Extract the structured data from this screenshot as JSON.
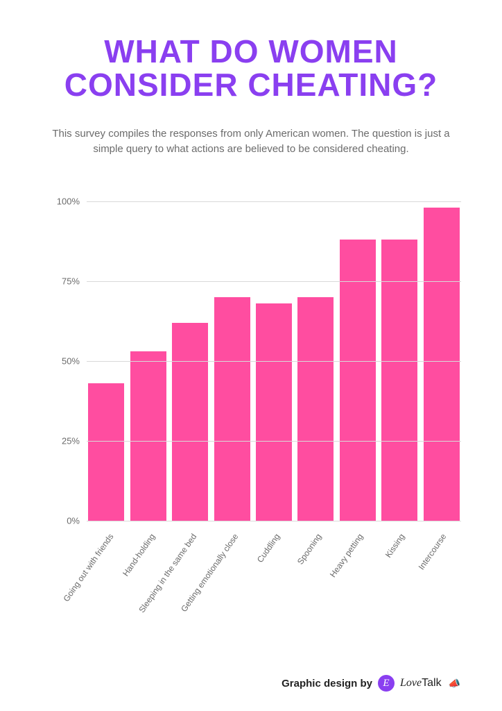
{
  "title": {
    "text": "WHAT DO WOMEN CONSIDER CHEATING?",
    "color": "#8a3ff0",
    "fontsize": 46
  },
  "subtitle": {
    "text": "This survey compiles the responses from only American women. The question is just a simple query to what actions are believed to be considered cheating.",
    "color": "#6b6b6b",
    "fontsize": 15
  },
  "chart": {
    "type": "bar",
    "categories": [
      "Going out with friends",
      "Hand-holding",
      "Sleeping in the same bed",
      "Getting emotionally close",
      "Cuddling",
      "Spooning",
      "Heavy petting",
      "Kissing",
      "Intercourse"
    ],
    "values": [
      43,
      53,
      62,
      70,
      68,
      70,
      88,
      88,
      98
    ],
    "bar_color": "#ff4da0",
    "ylim": [
      0,
      100
    ],
    "ytick_step": 25,
    "ytick_labels": [
      "0%",
      "25%",
      "50%",
      "75%",
      "100%"
    ],
    "grid_color": "#d9d9d9",
    "axis_label_color": "#6b6b6b",
    "axis_label_fontsize": 13,
    "xlabel_fontsize": 12,
    "bar_width": 0.82,
    "background_color": "#ffffff"
  },
  "footer": {
    "prefix": "Graphic design by",
    "logo_badge_bg": "#8a3ff0",
    "logo_badge_text": "E",
    "logo_badge_color": "#ffffff",
    "brand_script": "Love",
    "brand_rest": "Talk",
    "megaphone": "📣",
    "megaphone_color": "#ff4da0"
  }
}
